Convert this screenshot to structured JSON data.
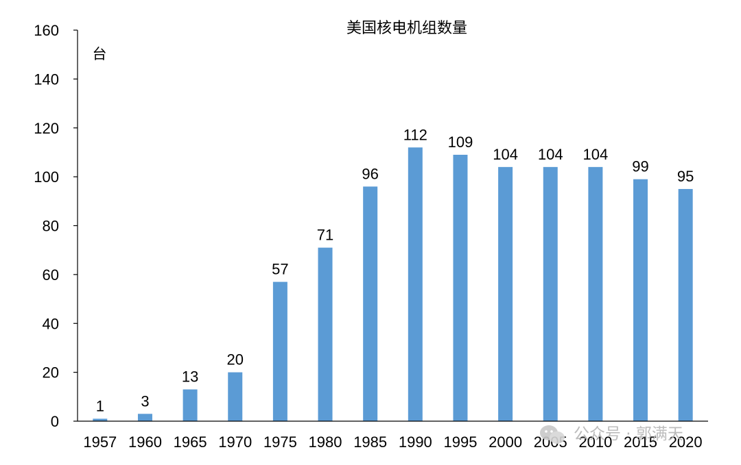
{
  "chart_data": {
    "type": "bar",
    "title": "美国核电机组数量",
    "unit_label": "台",
    "categories": [
      "1957",
      "1960",
      "1965",
      "1970",
      "1975",
      "1980",
      "1985",
      "1990",
      "1995",
      "2000",
      "2005",
      "2010",
      "2015",
      "2020"
    ],
    "values": [
      1,
      3,
      13,
      20,
      57,
      71,
      96,
      112,
      109,
      104,
      104,
      104,
      99,
      95
    ],
    "ylim": [
      0,
      160
    ],
    "yticks": [
      0,
      20,
      40,
      60,
      80,
      100,
      120,
      140,
      160
    ],
    "grid": false,
    "bar_color": "#5b9bd5",
    "data_labels": true
  },
  "watermark": {
    "icon": "wechat-icon",
    "text": "公众号 · 郭满天"
  }
}
